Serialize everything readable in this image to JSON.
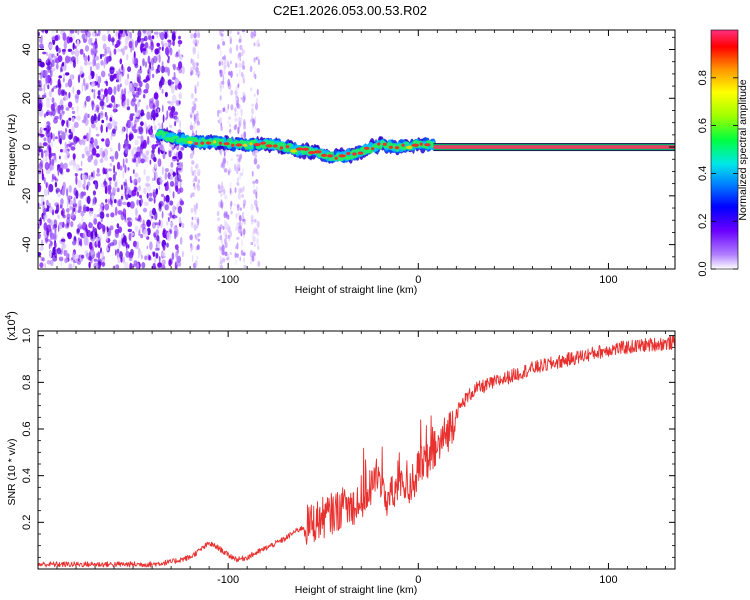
{
  "title": "C2E1.2026.053.00.53.R02",
  "chart_data": [
    {
      "type": "heatmap",
      "name": "spectrogram",
      "xlabel": "Height of straight line (km)",
      "ylabel": "Frequency (Hz)",
      "xlim": [
        -200,
        135
      ],
      "ylim": [
        -50,
        48
      ],
      "xticks": [
        -100,
        0,
        100
      ],
      "xtick_labels": [
        "-100",
        "0",
        "100"
      ],
      "yticks": [
        -40,
        -20,
        0,
        20,
        40
      ],
      "ytick_labels": [
        "-40",
        "-20",
        "0",
        "20",
        "40"
      ],
      "colorbar": {
        "label": "Normalized spectral amplitude",
        "range": [
          0,
          1
        ],
        "ticks": [
          0.0,
          0.2,
          0.4,
          0.6,
          0.8
        ],
        "tick_labels": [
          "0.0",
          "0.2",
          "0.4",
          "0.6",
          "0.8"
        ]
      },
      "carrier_track": {
        "x": [
          -135,
          -125,
          -115,
          -105,
          -95,
          -85,
          -75,
          -65,
          -55,
          -45,
          -40,
          -30,
          -20,
          -10,
          0,
          10,
          50,
          100,
          135
        ],
        "y": [
          5,
          3,
          2,
          2,
          1,
          1,
          1,
          -1,
          -2,
          -4,
          -4,
          -2,
          1,
          0,
          1,
          1,
          0,
          0,
          0
        ]
      }
    },
    {
      "type": "line",
      "name": "snr",
      "xlabel": "Height of straight line (km)",
      "ylabel": "SNR (10 * v/v)",
      "scale_label": "(x10",
      "scale_exp": "4",
      "scale_close": ")",
      "xlim": [
        -200,
        135
      ],
      "ylim": [
        0,
        1.02
      ],
      "xticks": [
        -100,
        0,
        100
      ],
      "xtick_labels": [
        "-100",
        "0",
        "100"
      ],
      "yticks": [
        0.2,
        0.4,
        0.6,
        0.8,
        1.0
      ],
      "ytick_labels": [
        "0.2",
        "0.4",
        "0.6",
        "0.8",
        "1.0"
      ],
      "series": [
        {
          "name": "SNR",
          "color": "#e8302e",
          "x": [
            -200,
            -180,
            -160,
            -140,
            -130,
            -120,
            -115,
            -110,
            -105,
            -100,
            -95,
            -90,
            -85,
            -80,
            -75,
            -70,
            -65,
            -60,
            -55,
            -50,
            -45,
            -40,
            -35,
            -30,
            -25,
            -22,
            -20,
            -18,
            -15,
            -12,
            -10,
            -5,
            0,
            5,
            10,
            15,
            18,
            20,
            25,
            30,
            40,
            50,
            60,
            70,
            80,
            90,
            100,
            110,
            120,
            135
          ],
          "y": [
            0.02,
            0.02,
            0.02,
            0.02,
            0.03,
            0.05,
            0.08,
            0.11,
            0.09,
            0.06,
            0.04,
            0.05,
            0.07,
            0.09,
            0.11,
            0.13,
            0.16,
            0.18,
            0.2,
            0.22,
            0.24,
            0.26,
            0.27,
            0.3,
            0.35,
            0.4,
            0.38,
            0.32,
            0.3,
            0.33,
            0.4,
            0.35,
            0.42,
            0.47,
            0.52,
            0.58,
            0.63,
            0.67,
            0.73,
            0.77,
            0.8,
            0.83,
            0.86,
            0.88,
            0.9,
            0.92,
            0.94,
            0.95,
            0.96,
            0.97
          ]
        }
      ]
    }
  ]
}
